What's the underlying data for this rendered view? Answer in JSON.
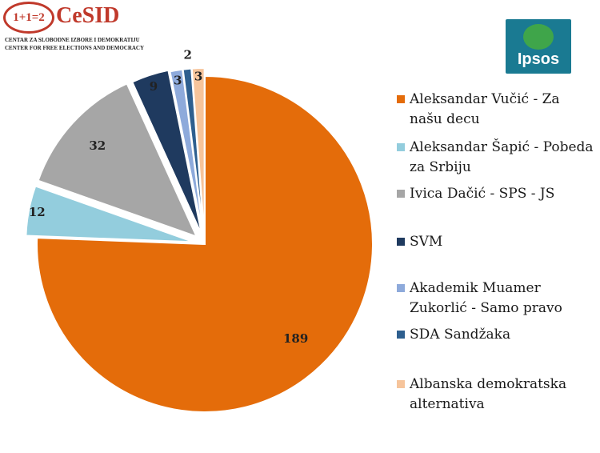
{
  "logos": {
    "cesid_badge": "1+1=2",
    "cesid_name": "CeSID",
    "cesid_sub1": "CENTAR ZA SLOBODNE IZBORE I DEMOKRATIJU",
    "cesid_sub2": "CENTER FOR FREE ELECTIONS AND DEMOCRACY",
    "ipsos": "Ipsos"
  },
  "chart_data": {
    "type": "pie",
    "title": "",
    "legend_position": "right",
    "slices": [
      {
        "label": "Aleksandar Vučić - Za našu decu",
        "value": 189,
        "color": "#e46c0a"
      },
      {
        "label": "Aleksandar Šapić - Pobeda za Srbiju",
        "value": 12,
        "color": "#93cddd"
      },
      {
        "label": "Ivica Dačić - SPS - JS",
        "value": 32,
        "color": "#a6a6a6"
      },
      {
        "label": "SVM",
        "value": 9,
        "color": "#1f3a5f"
      },
      {
        "label": "Akademik Muamer Zukorlić - Samo pravo",
        "value": 3,
        "color": "#8eaadb"
      },
      {
        "label": "SDA Sandžaka",
        "value": 2,
        "color": "#2e5f8f"
      },
      {
        "label": "Albanska demokratska alternativa",
        "value": 3,
        "color": "#f6c49b"
      }
    ]
  }
}
